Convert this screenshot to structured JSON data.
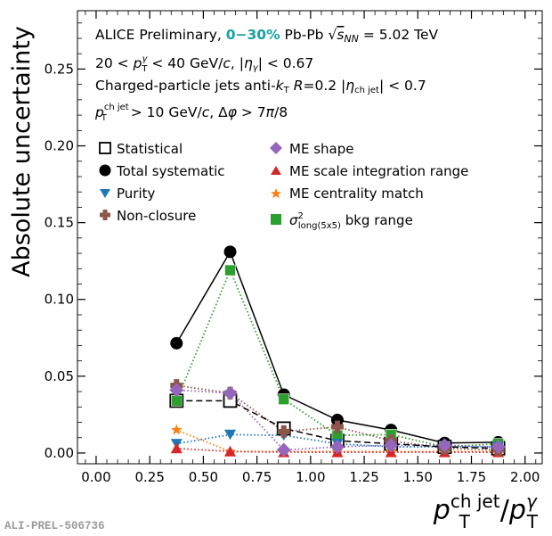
{
  "chart_data": {
    "type": "line",
    "title": "",
    "xlabel": "p_T^{ch jet}/p_T^{γ}",
    "xlabel_parts": {
      "base1": "p",
      "sub1": "T",
      "sup1": "ch jet",
      "slash": "/",
      "base2": "p",
      "sub2": "T",
      "sup2": "γ"
    },
    "ylabel": "Absolute uncertainty",
    "xlim": [
      -0.087,
      2.08
    ],
    "ylim": [
      -0.007,
      0.288
    ],
    "x_ticks": [
      0.0,
      0.25,
      0.5,
      0.75,
      1.0,
      1.25,
      1.5,
      1.75,
      2.0
    ],
    "x_tick_labels": [
      "0.00",
      "0.25",
      "0.50",
      "0.75",
      "1.00",
      "1.25",
      "1.50",
      "1.75",
      "2.00"
    ],
    "y_ticks": [
      0.0,
      0.05,
      0.1,
      0.15,
      0.2,
      0.25
    ],
    "y_tick_labels": [
      "0.00",
      "0.05",
      "0.10",
      "0.15",
      "0.20",
      "0.25"
    ],
    "grid": false,
    "legend_position": "upper-left, two columns",
    "x": [
      0.375,
      0.625,
      0.875,
      1.125,
      1.375,
      1.625,
      1.875
    ],
    "series": [
      {
        "name": "Statistical",
        "marker": "open-square",
        "line": "dashed",
        "color": "#000000",
        "values": [
          0.034,
          0.034,
          0.016,
          0.008,
          0.006,
          0.004,
          0.003
        ]
      },
      {
        "name": "Total systematic",
        "marker": "circle",
        "line": "solid",
        "color": "#000000",
        "values": [
          0.0715,
          0.131,
          0.038,
          0.0215,
          0.015,
          0.0065,
          0.007
        ]
      },
      {
        "name": "Purity",
        "marker": "triangle-down",
        "line": "dotted",
        "color": "#1f77b4",
        "values": [
          0.006,
          0.012,
          0.0115,
          0.006,
          0.004,
          0.004,
          0.004
        ]
      },
      {
        "name": "Non-closure",
        "marker": "plus-thick",
        "line": "dotted",
        "color": "#8c564b",
        "values": [
          0.044,
          0.039,
          0.014,
          0.017,
          0.008,
          0.003,
          0.002
        ]
      },
      {
        "name": "ME shape",
        "marker": "diamond",
        "line": "dotted",
        "color": "#9467bd",
        "values": [
          0.041,
          0.039,
          0.002,
          0.004,
          0.005,
          0.005,
          0.004
        ]
      },
      {
        "name": "ME scale integration range",
        "marker": "triangle-up",
        "line": "dotted",
        "color": "#d62728",
        "values": [
          0.003,
          0.001,
          0.0005,
          0.0005,
          0.0005,
          0.0005,
          0.0005
        ]
      },
      {
        "name": "ME centrality match",
        "marker": "star",
        "line": "dotted",
        "color": "#ff7f0e",
        "values": [
          0.015,
          0.001,
          0.001,
          0.001,
          0.001,
          0.001,
          0.001
        ]
      },
      {
        "name": "σ²_long(5x5) bkg range",
        "marker": "square",
        "line": "dotted",
        "color": "#2ca02c",
        "values": [
          0.034,
          0.119,
          0.035,
          0.0115,
          0.012,
          0.004,
          0.006
        ]
      }
    ],
    "legend_labels": {
      "statistical": "Statistical",
      "total": "Total systematic",
      "purity": "Purity",
      "nonclosure": "Non-closure",
      "meshape": "ME shape",
      "mescale": "ME scale integration range",
      "mecentrality": "ME centrality match",
      "sigma_base": "σ",
      "sigma_sup": "2",
      "sigma_sub": "long(5x5)",
      "sigma_rest": " bkg range"
    },
    "annotations": {
      "line1_a": "ALICE Preliminary, ",
      "line1_centrality": "0−30%",
      "line1_b": " Pb-Pb ",
      "line1_sqrt": "√",
      "line1_s": "s",
      "line1_nn": "NN",
      "line1_c": " = 5.02 TeV",
      "line2_a": "20 < ",
      "line2_p": "p",
      "line2_sup": "γ",
      "line2_sub": "T",
      "line2_b": " < 40 GeV/",
      "line2_c": "c",
      "line2_d": ", |",
      "line2_eta": "η",
      "line2_etasub": "γ",
      "line2_e": "| < 0.67",
      "line3_a": "Charged-particle jets anti-",
      "line3_k": "k",
      "line3_ksub": "T",
      "line3_b": " ",
      "line3_R": "R",
      "line3_c": "=0.2 |",
      "line3_eta": "η",
      "line3_etasub": "ch jet",
      "line3_d": "| < 0.7",
      "line4_p": "p",
      "line4_sup": "ch jet",
      "line4_sub": "T",
      "line4_a": " > 10 GeV/",
      "line4_c": "c",
      "line4_b": ", Δ",
      "line4_phi": "φ",
      "line4_d": " > 7",
      "line4_pi": "π",
      "line4_e": "/8"
    },
    "accent_color": "#17a2a2"
  },
  "footer": {
    "id": "ALI-PREL-506736"
  }
}
